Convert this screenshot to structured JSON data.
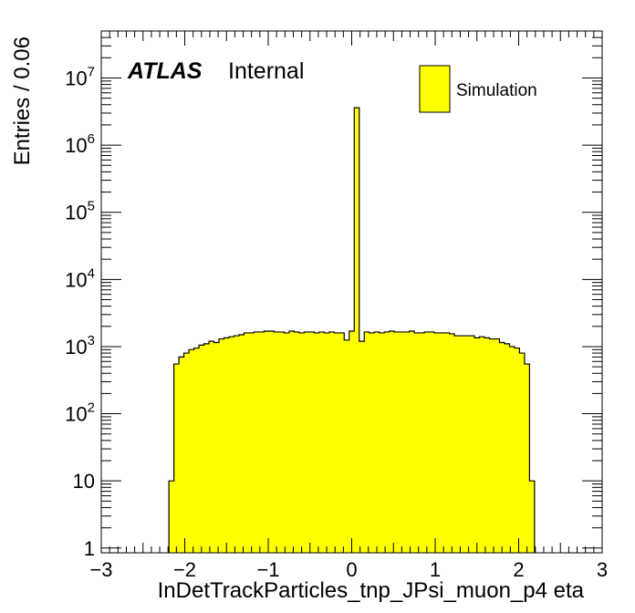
{
  "chart_data": {
    "type": "histogram",
    "xlabel": "InDetTrackParticles_tnp_JPsi_muon_p4 eta",
    "ylabel": "Entries / 0.06",
    "xlim": [
      -3,
      3
    ],
    "ylim": [
      0.85,
      50000000
    ],
    "yscale": "log",
    "bin_width": 0.06,
    "x_ticks": [
      {
        "value": -3,
        "label": "−3"
      },
      {
        "value": -2,
        "label": "−2"
      },
      {
        "value": -1,
        "label": "−1"
      },
      {
        "value": 0,
        "label": "0"
      },
      {
        "value": 1,
        "label": "1"
      },
      {
        "value": 2,
        "label": "2"
      },
      {
        "value": 3,
        "label": "3"
      }
    ],
    "y_ticks": [
      {
        "value": 1,
        "base": "1",
        "exp": ""
      },
      {
        "value": 10,
        "base": "10",
        "exp": ""
      },
      {
        "value": 100,
        "base": "10",
        "exp": "2"
      },
      {
        "value": 1000,
        "base": "10",
        "exp": "3"
      },
      {
        "value": 10000,
        "base": "10",
        "exp": "4"
      },
      {
        "value": 100000,
        "base": "10",
        "exp": "5"
      },
      {
        "value": 1000000,
        "base": "10",
        "exp": "6"
      },
      {
        "value": 10000000,
        "base": "10",
        "exp": "7"
      }
    ],
    "series": [
      {
        "name": "Simulation",
        "color": "#ffff00",
        "edge_color": "#000000",
        "bin_lows": [
          -2.19,
          -2.13,
          -2.07,
          -2.01,
          -1.95,
          -1.89,
          -1.83,
          -1.77,
          -1.71,
          -1.65,
          -1.59,
          -1.53,
          -1.47,
          -1.41,
          -1.35,
          -1.29,
          -1.23,
          -1.17,
          -1.11,
          -1.05,
          -0.99,
          -0.93,
          -0.87,
          -0.81,
          -0.75,
          -0.69,
          -0.63,
          -0.57,
          -0.51,
          -0.45,
          -0.39,
          -0.33,
          -0.27,
          -0.21,
          -0.15,
          -0.09,
          -0.03,
          0.03,
          0.09,
          0.15,
          0.21,
          0.27,
          0.33,
          0.39,
          0.45,
          0.51,
          0.57,
          0.63,
          0.69,
          0.75,
          0.81,
          0.87,
          0.93,
          0.99,
          1.05,
          1.11,
          1.17,
          1.23,
          1.29,
          1.35,
          1.41,
          1.47,
          1.53,
          1.59,
          1.65,
          1.71,
          1.77,
          1.83,
          1.89,
          1.95,
          2.01,
          2.07,
          2.13
        ],
        "values": [
          10,
          550,
          700,
          800,
          900,
          950,
          1050,
          1100,
          1200,
          1150,
          1300,
          1350,
          1400,
          1450,
          1500,
          1600,
          1600,
          1650,
          1650,
          1700,
          1700,
          1650,
          1650,
          1600,
          1700,
          1650,
          1600,
          1650,
          1650,
          1600,
          1650,
          1600,
          1650,
          1600,
          1600,
          1250,
          1700,
          3600000,
          1200,
          1650,
          1600,
          1650,
          1600,
          1650,
          1700,
          1650,
          1650,
          1650,
          1700,
          1600,
          1600,
          1650,
          1650,
          1600,
          1600,
          1600,
          1550,
          1450,
          1450,
          1450,
          1450,
          1350,
          1400,
          1350,
          1300,
          1300,
          1150,
          1100,
          1000,
          950,
          800,
          550,
          10
        ]
      }
    ]
  },
  "plot_label": {
    "experiment": "ATLAS",
    "status": "Internal"
  },
  "legend": {
    "entries": [
      {
        "label": "Simulation",
        "color": "#ffff00"
      }
    ]
  }
}
